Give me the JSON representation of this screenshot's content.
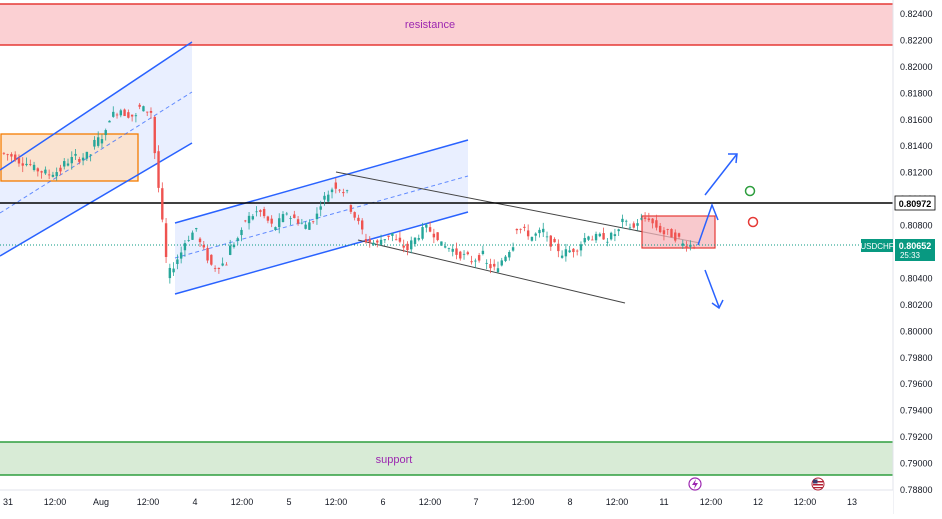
{
  "chart_data": {
    "type": "candlestick",
    "symbol": "USDCHF",
    "ylim": [
      0.788,
      0.825
    ],
    "y_ticks": [
      "0.82400",
      "0.82200",
      "0.82000",
      "0.81800",
      "0.81600",
      "0.81400",
      "0.81200",
      "0.81000",
      "0.80800",
      "0.80600",
      "0.80400",
      "0.80200",
      "0.80000",
      "0.79800",
      "0.79600",
      "0.79400",
      "0.79200",
      "0.79000",
      "0.78800"
    ],
    "x_ticks": [
      "31",
      "12:00",
      "Aug",
      "12:00",
      "4",
      "12:00",
      "5",
      "12:00",
      "6",
      "12:00",
      "7",
      "12:00",
      "8",
      "12:00",
      "11",
      "12:00",
      "12",
      "12:00",
      "13"
    ],
    "current_price": {
      "label": "USDCHF",
      "value": "0.80652",
      "countdown": "25:33"
    },
    "horizontal_line": {
      "value": "0.80972"
    },
    "resistance_zone": {
      "label": "resistance",
      "from": 0.8217,
      "to": 0.8248
    },
    "support_zone": {
      "label": "support",
      "from": 0.7892,
      "to": 0.7916
    },
    "price_path": [
      [
        0.8135,
        0.8132
      ],
      [
        0.813,
        0.8126
      ],
      [
        0.8124,
        0.812
      ],
      [
        0.8118,
        0.8122
      ],
      [
        0.8125,
        0.8132
      ],
      [
        0.813,
        0.8134
      ],
      [
        0.814,
        0.815
      ],
      [
        0.816,
        0.8168
      ],
      [
        0.8166,
        0.8162
      ],
      [
        0.817,
        0.8166
      ],
      [
        0.8162,
        0.8055
      ],
      [
        0.804,
        0.806
      ],
      [
        0.8064,
        0.8078
      ],
      [
        0.8072,
        0.805
      ],
      [
        0.8048,
        0.8052
      ],
      [
        0.806,
        0.8074
      ],
      [
        0.8082,
        0.809
      ],
      [
        0.8093,
        0.808
      ],
      [
        0.8076,
        0.809
      ],
      [
        0.8088,
        0.8082
      ],
      [
        0.8077,
        0.8088
      ],
      [
        0.8094,
        0.8108
      ],
      [
        0.8112,
        0.8104
      ],
      [
        0.8098,
        0.8076
      ],
      [
        0.807,
        0.8066
      ],
      [
        0.8068,
        0.8074
      ],
      [
        0.807,
        0.8062
      ],
      [
        0.8064,
        0.8076
      ],
      [
        0.808,
        0.8072
      ],
      [
        0.8066,
        0.8062
      ],
      [
        0.806,
        0.8056
      ],
      [
        0.8052,
        0.8058
      ],
      [
        0.8052,
        0.8046
      ],
      [
        0.805,
        0.8066
      ],
      [
        0.808,
        0.8074
      ],
      [
        0.807,
        0.8076
      ],
      [
        0.8072,
        0.8062
      ],
      [
        0.8058,
        0.8062
      ],
      [
        0.806,
        0.8074
      ],
      [
        0.807,
        0.8072
      ],
      [
        0.8068,
        0.8076
      ],
      [
        0.8084,
        0.8078
      ],
      [
        0.8082,
        0.8086
      ],
      [
        0.8084,
        0.8074
      ],
      [
        0.8076,
        0.807
      ],
      [
        0.8066,
        0.8065
      ]
    ],
    "channels": [
      {
        "name": "",
        "upper": [
          [
            0,
            170
          ],
          [
            192,
            42
          ]
        ],
        "lower": [
          [
            0,
            256
          ],
          [
            192,
            143
          ]
        ],
        "mid": [
          [
            0,
            213
          ],
          [
            192,
            92
          ]
        ]
      },
      {
        "name": "",
        "upper": [
          [
            175,
            223
          ],
          [
            468,
            140
          ]
        ],
        "lower": [
          [
            175,
            294
          ],
          [
            468,
            212
          ]
        ],
        "mid": [
          [
            175,
            258
          ],
          [
            468,
            176
          ]
        ]
      }
    ],
    "rectangles": [
      {
        "name": "consolidation-box",
        "from": 0.8115,
        "to": 0.815
      },
      {
        "name": "current-box",
        "from": 0.8062,
        "to": 0.8087
      }
    ],
    "colors": {
      "up": "#26a69a",
      "down": "#ef5350",
      "channel": "#2962ff",
      "resistance_fill": "#fbd0d3",
      "resistance_line": "#e53935",
      "support_fill": "#d8ebd6",
      "support_line": "#2e9e3e",
      "price_badge": "#089981",
      "box_orange": "#f57c00",
      "box_fill": "#fde0c8"
    }
  }
}
